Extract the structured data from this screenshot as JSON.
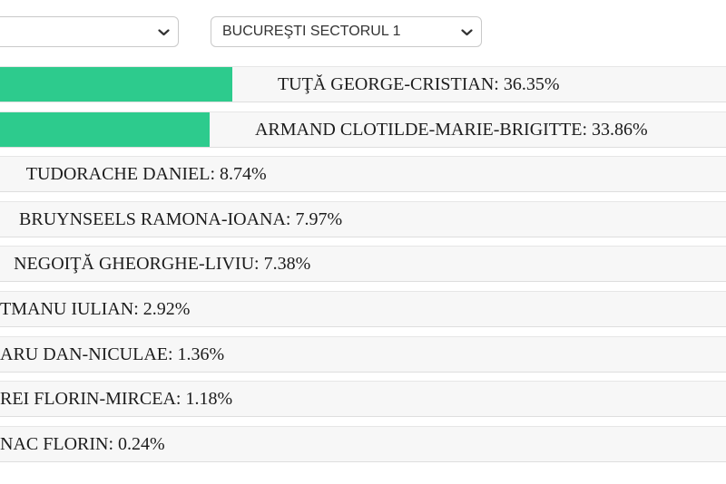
{
  "selectors": {
    "county": {
      "value": ""
    },
    "locality": {
      "value": "BUCUREŞTI SECTORUL 1"
    }
  },
  "chart_data": {
    "type": "bar",
    "orientation": "horizontal",
    "bar_color": "#2dcb8d",
    "value_suffix": "%",
    "items": [
      {
        "label": "TUŢĂ GEORGE-CRISTIAN",
        "value": 36.35
      },
      {
        "label": "ARMAND CLOTILDE-MARIE-BRIGITTE",
        "value": 33.86
      },
      {
        "label": "TUDORACHE DANIEL",
        "value": 8.74
      },
      {
        "label": "BRUYNSEELS RAMONA-IOANA",
        "value": 7.97
      },
      {
        "label": "NEGOIŢĂ GHEORGHE-LIVIU",
        "value": 7.38
      },
      {
        "label": "TMANU IULIAN",
        "value": 2.92,
        "label_truncated_left": true
      },
      {
        "label": "ARU DAN-NICULAE",
        "value": 1.36,
        "label_truncated_left": true
      },
      {
        "label": "REI FLORIN-MIRCEA",
        "value": 1.18,
        "label_truncated_left": true
      },
      {
        "label": "NAC FLORIN",
        "value": 0.24,
        "label_truncated_left": true
      }
    ]
  }
}
